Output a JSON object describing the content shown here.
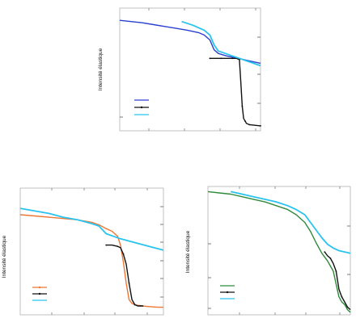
{
  "chart_data": [
    {
      "type": "line",
      "ylabel": "Intensité élastique",
      "xlim": [
        0,
        100
      ],
      "ylim": [
        0,
        100
      ],
      "legend": "bottom-left",
      "grid": false,
      "series": [
        {
          "color": "#2b3fcf",
          "x": [
            0,
            8,
            16,
            24,
            32,
            40,
            48,
            56,
            60,
            64,
            67,
            70,
            73,
            76,
            80,
            84,
            88,
            92,
            96,
            100
          ],
          "y": [
            90,
            89,
            88,
            86.5,
            85,
            83.5,
            82,
            80,
            78,
            74,
            66,
            63,
            62,
            61,
            60,
            59,
            58,
            57,
            56,
            55
          ]
        },
        {
          "color": "#111111",
          "x": [
            64,
            68,
            72,
            76,
            80,
            83,
            85,
            86,
            87,
            88,
            89,
            90,
            92,
            96,
            100
          ],
          "y": [
            59,
            59,
            59,
            59,
            59,
            59,
            58,
            40,
            20,
            10,
            8,
            6,
            5,
            4.5,
            4
          ]
        },
        {
          "color": "#29c3f0",
          "x": [
            44,
            52,
            60,
            64,
            67,
            70,
            75,
            80,
            85,
            90,
            95,
            100
          ],
          "y": [
            89,
            86,
            82,
            78,
            70,
            65,
            63,
            61,
            59,
            57,
            55,
            53
          ]
        }
      ],
      "legend_colors": [
        "#2b3fcf",
        "#111111",
        "#29c3f0"
      ]
    },
    {
      "type": "line",
      "ylabel": "Intensité élastique",
      "xlim": [
        0,
        100
      ],
      "ylim": [
        0,
        100
      ],
      "legend": "bottom-left",
      "grid": false,
      "series": [
        {
          "color": "#ee7733",
          "x": [
            0,
            10,
            20,
            30,
            40,
            50,
            55,
            60,
            64,
            68,
            70,
            72,
            74,
            76,
            78,
            80,
            82,
            85,
            90,
            96,
            100
          ],
          "y": [
            79,
            78,
            77,
            76,
            75,
            73,
            71,
            68,
            66,
            62,
            55,
            42,
            25,
            12,
            9,
            8,
            7.5,
            7,
            6.5,
            6,
            6
          ]
        },
        {
          "color": "#111111",
          "x": [
            60,
            64,
            68,
            70,
            72,
            74,
            76,
            78,
            80,
            82,
            84,
            86
          ],
          "y": [
            55,
            55,
            54,
            53,
            48,
            40,
            25,
            12,
            8,
            7,
            7,
            7
          ]
        },
        {
          "color": "#29c3f0",
          "x": [
            0,
            10,
            20,
            30,
            40,
            50,
            55,
            60,
            65,
            70,
            80,
            90,
            100
          ],
          "y": [
            84,
            82,
            80,
            77,
            75,
            72,
            70,
            64,
            62,
            60,
            57,
            54,
            51
          ]
        }
      ],
      "legend_colors": [
        "#ee7733",
        "#111111",
        "#29c3f0"
      ]
    },
    {
      "type": "line",
      "ylabel": "Intensité élastique",
      "xlim": [
        0,
        100
      ],
      "ylim": [
        0,
        100
      ],
      "legend": "bottom-left",
      "grid": false,
      "series": [
        {
          "color": "#2f8a3a",
          "x": [
            0,
            8,
            16,
            24,
            32,
            40,
            48,
            56,
            62,
            68,
            72,
            76,
            80,
            84,
            86,
            88,
            90,
            92,
            94,
            96,
            98,
            100
          ],
          "y": [
            96,
            95,
            94,
            92,
            90,
            88,
            85,
            82,
            78,
            72,
            65,
            56,
            48,
            42,
            38,
            34,
            24,
            14,
            10,
            8,
            4,
            2
          ]
        },
        {
          "color": "#111111",
          "x": [
            82,
            84,
            86,
            88,
            90,
            92,
            94,
            96,
            98,
            100
          ],
          "y": [
            49,
            46,
            44,
            40,
            34,
            20,
            14,
            10,
            6,
            4
          ]
        },
        {
          "color": "#29c3f0",
          "x": [
            16,
            24,
            32,
            40,
            48,
            56,
            62,
            68,
            72,
            76,
            80,
            84,
            88,
            92,
            96,
            100
          ],
          "y": [
            96,
            94,
            92,
            90,
            88,
            85,
            82,
            78,
            72,
            66,
            60,
            55,
            52,
            50,
            49,
            48
          ]
        }
      ],
      "legend_colors": [
        "#2f8a3a",
        "#111111",
        "#29c3f0"
      ]
    }
  ]
}
